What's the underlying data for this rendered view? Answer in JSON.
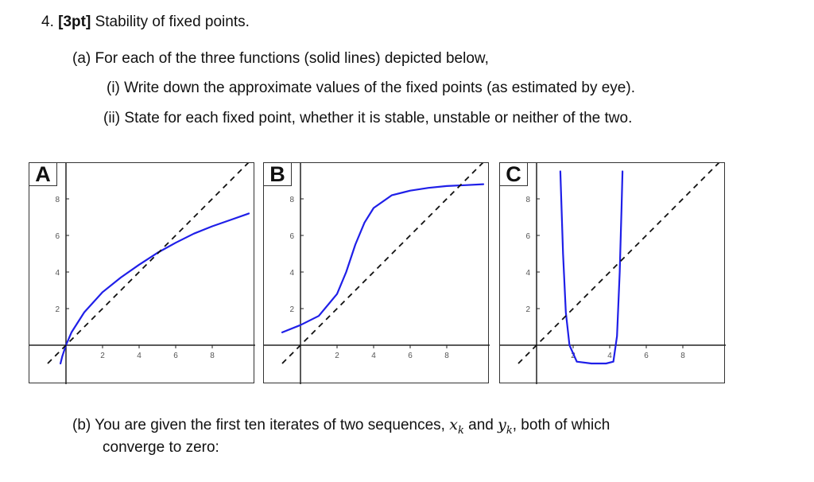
{
  "problem": {
    "number": "4.",
    "points": "[3pt]",
    "title": "Stability of fixed points."
  },
  "part_a": {
    "label": "(a)",
    "text": "For each of the three functions (solid lines) depicted below,",
    "items": [
      {
        "label": "(i)",
        "text": "Write down the approximate values of the fixed points (as estimated by eye)."
      },
      {
        "label": "(ii)",
        "text": "State for each fixed point, whether it is stable, unstable or neither of the two."
      }
    ]
  },
  "part_b": {
    "label": "(b)",
    "line1_pre": "You are given the first ten iterates of two sequences,",
    "var1": "x",
    "sub1": "k",
    "mid": "and",
    "var2": "y",
    "sub2": "k",
    "line1_post": ", both of which",
    "line2": "converge to zero:"
  },
  "colors": {
    "curve": "#1f1fe8",
    "diagonal": "#111111",
    "axis": "#222222"
  },
  "chart_data": [
    {
      "type": "line",
      "panel_label": "A",
      "xticks": [
        2,
        4,
        6,
        8
      ],
      "yticks": [
        2,
        4,
        6,
        8
      ],
      "xlim": [
        -1,
        10
      ],
      "ylim": [
        -1,
        9.5
      ],
      "series": [
        {
          "x": [
            -0.3,
            -0.2,
            0,
            0.3,
            1,
            2,
            3,
            4,
            5,
            6,
            7,
            8,
            9,
            10
          ],
          "y": [
            -1,
            -0.6,
            0,
            0.7,
            1.8,
            2.9,
            3.7,
            4.4,
            5.05,
            5.6,
            6.1,
            6.5,
            6.85,
            7.2
          ],
          "style": "solid"
        },
        {
          "x": [
            -1,
            10
          ],
          "y": [
            -1,
            10
          ],
          "style": "dashed"
        }
      ]
    },
    {
      "type": "line",
      "panel_label": "B",
      "xticks": [
        2,
        4,
        6,
        8
      ],
      "yticks": [
        2,
        4,
        6,
        8
      ],
      "xlim": [
        -1,
        10
      ],
      "ylim": [
        -1,
        9.5
      ],
      "series": [
        {
          "x": [
            -1,
            0,
            1,
            2,
            2.5,
            3,
            3.5,
            4,
            5,
            6,
            7,
            8,
            9,
            10
          ],
          "y": [
            0.7,
            1.1,
            1.6,
            2.8,
            4.0,
            5.5,
            6.7,
            7.5,
            8.2,
            8.45,
            8.6,
            8.7,
            8.75,
            8.8
          ],
          "style": "solid"
        },
        {
          "x": [
            -1,
            10
          ],
          "y": [
            -1,
            10
          ],
          "style": "dashed"
        }
      ]
    },
    {
      "type": "line",
      "panel_label": "C",
      "xticks": [
        2,
        4,
        6,
        8
      ],
      "yticks": [
        2,
        4,
        6,
        8
      ],
      "xlim": [
        -1,
        10
      ],
      "ylim": [
        -1,
        9.5
      ],
      "series": [
        {
          "x": [
            1.3,
            1.45,
            1.6,
            1.8,
            2.2,
            3.0,
            3.8,
            4.2,
            4.4,
            4.55,
            4.65,
            4.7
          ],
          "y": [
            9.5,
            5.0,
            1.8,
            0.0,
            -0.9,
            -1.0,
            -1.0,
            -0.9,
            0.5,
            4.0,
            7.5,
            9.5
          ],
          "style": "solid"
        },
        {
          "x": [
            -1,
            10
          ],
          "y": [
            -1,
            10
          ],
          "style": "dashed"
        }
      ]
    }
  ]
}
